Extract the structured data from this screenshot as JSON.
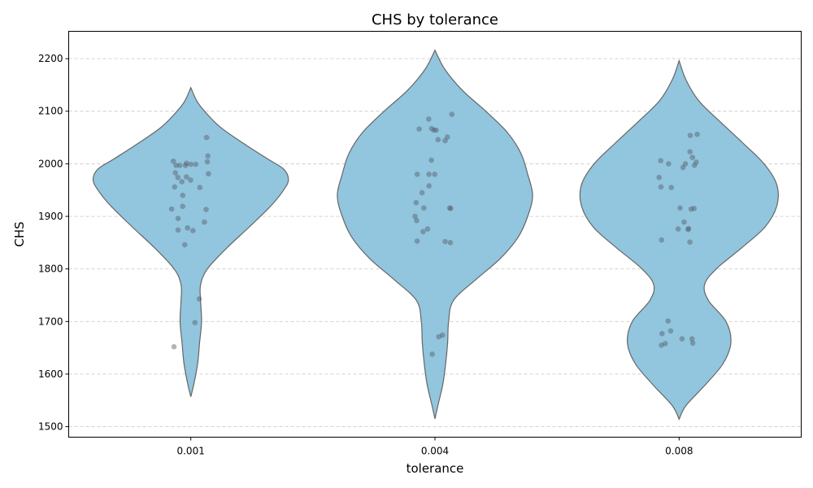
{
  "chart_data": {
    "type": "violin",
    "title": "CHS by tolerance",
    "xlabel": "tolerance",
    "ylabel": "CHS",
    "categories": [
      "0.001",
      "0.004",
      "0.008"
    ],
    "ylim": [
      1480,
      2252
    ],
    "yticks": [
      1500,
      1600,
      1700,
      1800,
      1900,
      2000,
      2100,
      2200
    ],
    "grid": "y-dashed",
    "colors": {
      "violin_fill": "#92c5de",
      "violin_edge": "#666666",
      "points": "#555c66",
      "grid": "#cccccc"
    },
    "series": [
      {
        "category": "0.001",
        "range": [
          1557,
          2145
        ],
        "profile": [
          [
            1557,
            0.0
          ],
          [
            1580,
            0.03
          ],
          [
            1620,
            0.07
          ],
          [
            1660,
            0.09
          ],
          [
            1700,
            0.11
          ],
          [
            1740,
            0.1
          ],
          [
            1770,
            0.1
          ],
          [
            1800,
            0.17
          ],
          [
            1840,
            0.37
          ],
          [
            1880,
            0.6
          ],
          [
            1920,
            0.82
          ],
          [
            1950,
            0.95
          ],
          [
            1970,
            1.0
          ],
          [
            1990,
            0.95
          ],
          [
            2010,
            0.78
          ],
          [
            2040,
            0.53
          ],
          [
            2070,
            0.3
          ],
          [
            2100,
            0.14
          ],
          [
            2120,
            0.06
          ],
          [
            2145,
            0.0
          ]
        ],
        "points": [
          2050,
          2015,
          2005,
          2001,
          2004,
          1997,
          1997,
          1999,
          1999,
          1997,
          1983,
          1981,
          1975,
          1974,
          1969,
          1966,
          1956,
          1955,
          1940,
          1919,
          1914,
          1913,
          1896,
          1889,
          1878,
          1874,
          1873,
          1846,
          1743,
          1698,
          1652
        ]
      },
      {
        "category": "0.004",
        "range": [
          1515,
          2216
        ],
        "profile": [
          [
            1515,
            0.0
          ],
          [
            1540,
            0.03
          ],
          [
            1580,
            0.08
          ],
          [
            1620,
            0.11
          ],
          [
            1660,
            0.13
          ],
          [
            1700,
            0.14
          ],
          [
            1740,
            0.19
          ],
          [
            1780,
            0.42
          ],
          [
            1820,
            0.67
          ],
          [
            1860,
            0.85
          ],
          [
            1900,
            0.95
          ],
          [
            1940,
            1.0
          ],
          [
            1980,
            0.95
          ],
          [
            2020,
            0.88
          ],
          [
            2060,
            0.74
          ],
          [
            2100,
            0.52
          ],
          [
            2140,
            0.28
          ],
          [
            2180,
            0.1
          ],
          [
            2216,
            0.0
          ]
        ],
        "points": [
          2094,
          2085,
          2067,
          2066,
          2064,
          2064,
          2051,
          2046,
          2044,
          2007,
          1980,
          1980,
          1980,
          1958,
          1945,
          1926,
          1916,
          1916,
          1915,
          1900,
          1892,
          1876,
          1871,
          1853,
          1852,
          1850,
          1674,
          1671,
          1638
        ]
      },
      {
        "category": "0.008",
        "range": [
          1514,
          2196
        ],
        "profile": [
          [
            1514,
            0.0
          ],
          [
            1540,
            0.07
          ],
          [
            1580,
            0.27
          ],
          [
            1620,
            0.45
          ],
          [
            1660,
            0.53
          ],
          [
            1700,
            0.48
          ],
          [
            1740,
            0.3
          ],
          [
            1770,
            0.26
          ],
          [
            1800,
            0.38
          ],
          [
            1840,
            0.64
          ],
          [
            1880,
            0.88
          ],
          [
            1920,
            1.0
          ],
          [
            1960,
            1.0
          ],
          [
            2000,
            0.87
          ],
          [
            2040,
            0.65
          ],
          [
            2080,
            0.42
          ],
          [
            2120,
            0.2
          ],
          [
            2160,
            0.07
          ],
          [
            2196,
            0.0
          ]
        ],
        "points": [
          2056,
          2054,
          2023,
          2012,
          2006,
          2003,
          2000,
          2000,
          1997,
          1993,
          1974,
          1956,
          1955,
          1916,
          1915,
          1914,
          1889,
          1877,
          1876,
          1875,
          1855,
          1851,
          1701,
          1682,
          1677,
          1667,
          1667,
          1659,
          1658,
          1655
        ]
      }
    ]
  }
}
